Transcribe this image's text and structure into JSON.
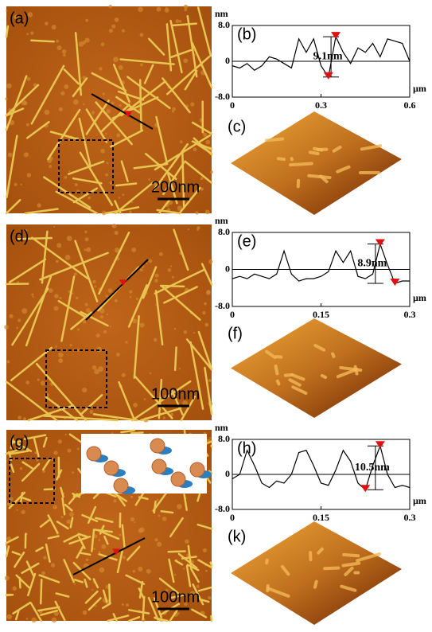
{
  "images": [
    {
      "label": "(a)",
      "scale_bar": "200nm"
    },
    {
      "label": "(d)",
      "scale_bar": "100nm"
    },
    {
      "label": "(g)",
      "scale_bar": "100nm"
    }
  ],
  "surfaces": [
    {
      "label": "(c)"
    },
    {
      "label": "(f)"
    },
    {
      "label": "(k)"
    }
  ],
  "chart_data": [
    {
      "type": "line",
      "label": "(b)",
      "y_unit": "nm",
      "x_unit": "µm",
      "annotation": "9.1nm",
      "color": "#000000",
      "x": [
        0,
        0.025,
        0.05,
        0.075,
        0.1,
        0.125,
        0.15,
        0.175,
        0.2,
        0.225,
        0.25,
        0.275,
        0.3,
        0.325,
        0.35,
        0.375,
        0.4,
        0.425,
        0.45,
        0.475,
        0.5,
        0.525,
        0.55,
        0.575,
        0.6
      ],
      "values": [
        -1,
        -1.5,
        -0.5,
        -2,
        -1,
        1,
        0.5,
        -0.5,
        -1.5,
        5,
        2,
        5,
        -1,
        -3.5,
        5.5,
        2,
        -0.5,
        3,
        2,
        4,
        1,
        5,
        4.5,
        4,
        0
      ],
      "xlim": [
        0,
        0.6
      ],
      "ylim": [
        -8,
        8
      ],
      "xticks": [
        0,
        0.3,
        0.6
      ],
      "yticks": [
        {
          "value": 8,
          "label": "8.0"
        },
        0,
        {
          "value": -8,
          "label": "-8.0"
        }
      ]
    },
    {
      "type": "line",
      "label": "(e)",
      "y_unit": "nm",
      "x_unit": "µm",
      "annotation": "8.9nm",
      "color": "#000000",
      "x": [
        0,
        0.0125,
        0.025,
        0.0375,
        0.05,
        0.0625,
        0.075,
        0.0875,
        0.1,
        0.1125,
        0.125,
        0.1375,
        0.15,
        0.1625,
        0.175,
        0.1875,
        0.2,
        0.2125,
        0.225,
        0.2375,
        0.25,
        0.2625,
        0.275,
        0.2875,
        0.3
      ],
      "values": [
        -2,
        -1.5,
        -2,
        -1,
        -1.5,
        -2,
        -1,
        4,
        -1,
        -2.5,
        -2,
        -2,
        -1.5,
        -0.5,
        4,
        1.5,
        4,
        -1.5,
        -2,
        -1,
        5.5,
        1,
        -3,
        -2.5,
        -2.5
      ],
      "xlim": [
        0,
        0.3
      ],
      "ylim": [
        -8,
        8
      ],
      "xticks": [
        0,
        0.15,
        0.3
      ],
      "yticks": [
        {
          "value": 8,
          "label": "8.0"
        },
        0,
        {
          "value": -8,
          "label": "-8.0"
        }
      ]
    },
    {
      "type": "line",
      "label": "(h)",
      "y_unit": "nm",
      "x_unit": "µm",
      "annotation": "10.5nm",
      "color": "#000000",
      "x": [
        0,
        0.0125,
        0.025,
        0.0375,
        0.05,
        0.0625,
        0.075,
        0.0875,
        0.1,
        0.1125,
        0.125,
        0.1375,
        0.15,
        0.1625,
        0.175,
        0.1875,
        0.2,
        0.2125,
        0.225,
        0.2375,
        0.25,
        0.2625,
        0.275,
        0.2875,
        0.3
      ],
      "values": [
        -1,
        0,
        5.5,
        2,
        -2,
        -3,
        -1.5,
        -2,
        0,
        5,
        5.5,
        2,
        -2,
        -2.5,
        1,
        5.5,
        3,
        -2,
        -3.5,
        2,
        6.5,
        0,
        -3,
        -2.5,
        -3
      ],
      "xlim": [
        0,
        0.3
      ],
      "ylim": [
        -8,
        8
      ],
      "xticks": [
        0,
        0.15,
        0.3
      ],
      "yticks": [
        {
          "value": 8,
          "label": "8.0"
        },
        0,
        {
          "value": -8,
          "label": "-8.0"
        }
      ]
    }
  ]
}
